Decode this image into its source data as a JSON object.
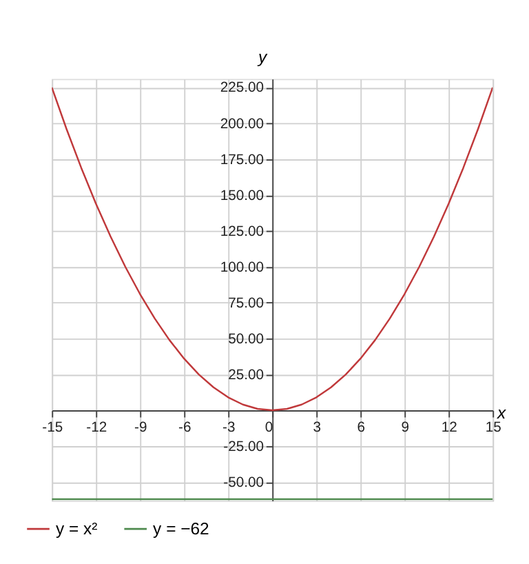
{
  "chart_data": {
    "type": "line",
    "xlabel": "x",
    "ylabel": "y",
    "x": [
      -15,
      -14,
      -13,
      -12,
      -11,
      -10,
      -9,
      -8,
      -7,
      -6,
      -5,
      -4,
      -3,
      -2,
      -1,
      0,
      1,
      2,
      3,
      4,
      5,
      6,
      7,
      8,
      9,
      10,
      11,
      12,
      13,
      14,
      15
    ],
    "series": [
      {
        "name": "y = x²",
        "color": "#c0393b",
        "values": [
          225,
          196,
          169,
          144,
          121,
          100,
          81,
          64,
          49,
          36,
          25,
          16,
          9,
          4,
          1,
          0,
          1,
          4,
          9,
          16,
          25,
          36,
          49,
          64,
          81,
          100,
          121,
          144,
          169,
          196,
          225
        ]
      },
      {
        "name": "y = −62",
        "color": "#4e8a4e",
        "x": [
          -15,
          15
        ],
        "values": [
          -62,
          -62
        ]
      }
    ],
    "xlim": [
      -15,
      15
    ],
    "ylim": [
      -63,
      231
    ],
    "xticks": [
      -15,
      -12,
      -9,
      -6,
      -3,
      0,
      3,
      6,
      9,
      12,
      15
    ],
    "yticks": [
      {
        "value": -50,
        "label": "-50.00"
      },
      {
        "value": -25,
        "label": "-25.00"
      },
      {
        "value": 25,
        "label": "25.00"
      },
      {
        "value": 50,
        "label": "50.00"
      },
      {
        "value": 75,
        "label": "75.00"
      },
      {
        "value": 100,
        "label": "100.00"
      },
      {
        "value": 125,
        "label": "125.00"
      },
      {
        "value": 150,
        "label": "150.00"
      },
      {
        "value": 175,
        "label": "175.00"
      },
      {
        "value": 200,
        "label": "200.00"
      },
      {
        "value": 225,
        "label": "225.00"
      }
    ],
    "grid": true,
    "legend": "bottom left",
    "marker": "none",
    "line_style": "solid"
  }
}
